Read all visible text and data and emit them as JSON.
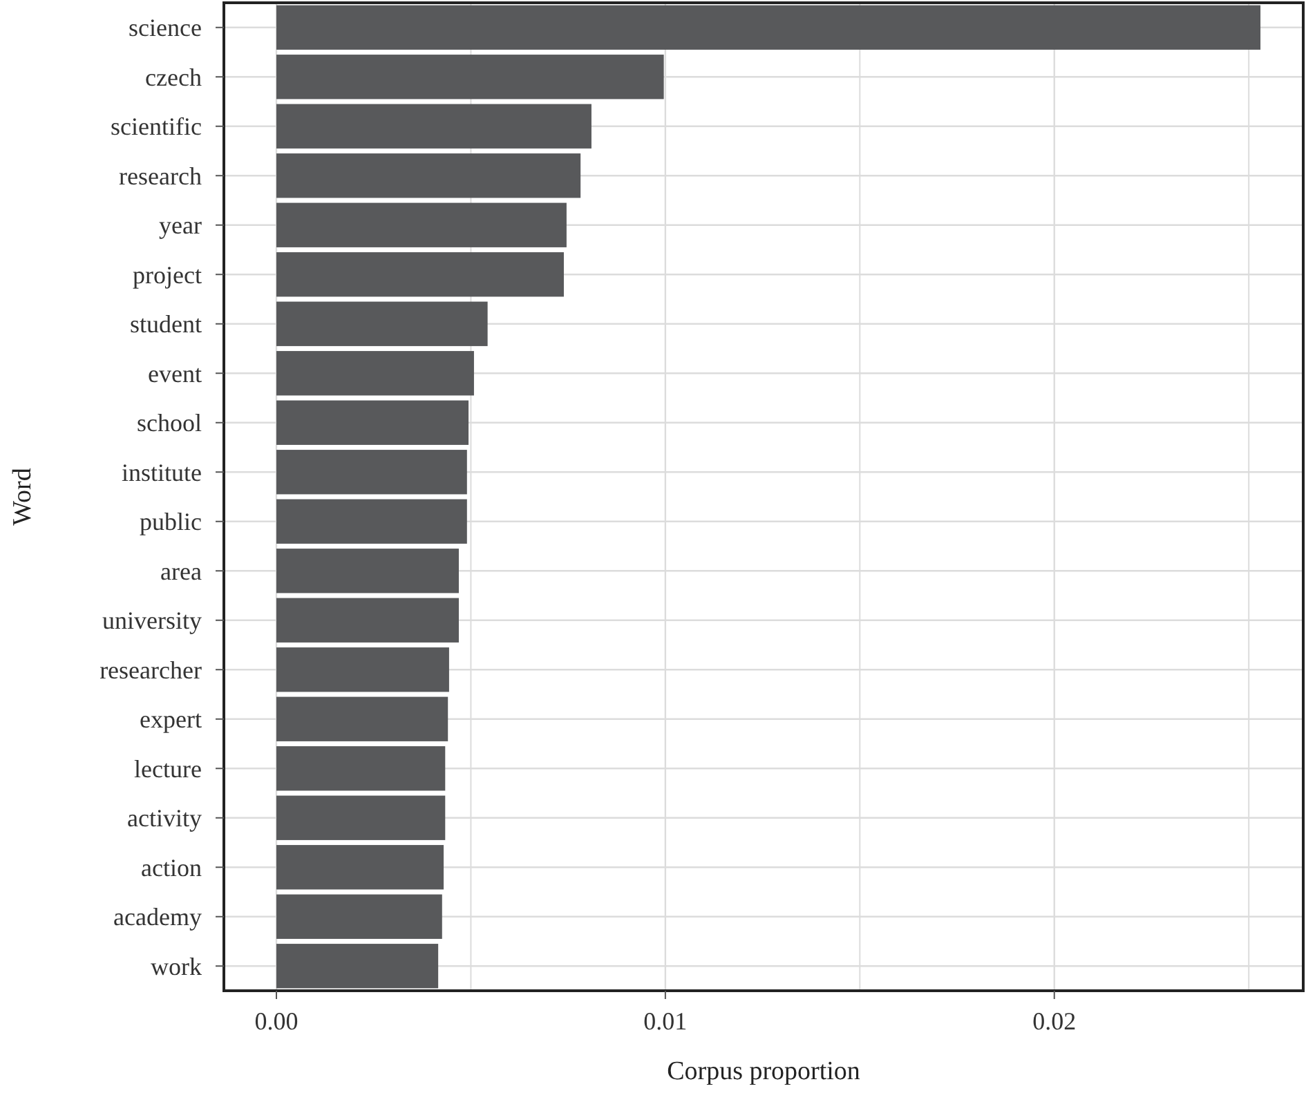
{
  "chart_data": {
    "type": "bar",
    "orientation": "horizontal",
    "xlabel": "Corpus proportion",
    "ylabel": "Word",
    "categories": [
      "science",
      "czech",
      "scientific",
      "research",
      "year",
      "project",
      "student",
      "event",
      "school",
      "institute",
      "public",
      "area",
      "university",
      "researcher",
      "expert",
      "lecture",
      "activity",
      "action",
      "academy",
      "work"
    ],
    "values": [
      0.0253,
      0.00996,
      0.0081,
      0.00782,
      0.00746,
      0.00739,
      0.00543,
      0.00508,
      0.00494,
      0.0049,
      0.0049,
      0.00469,
      0.00469,
      0.00444,
      0.00441,
      0.00434,
      0.00434,
      0.0043,
      0.00426,
      0.00416
    ],
    "color": "#58595b",
    "xlim": [
      -0.00135,
      0.0264
    ],
    "xticks": [
      {
        "value": 0,
        "label": "0.00"
      },
      {
        "value": 0.005,
        "label": null
      },
      0.01,
      {
        "value": 0.015,
        "label": null
      },
      0.02,
      {
        "value": 0.025,
        "label": null
      }
    ],
    "grid": true
  }
}
